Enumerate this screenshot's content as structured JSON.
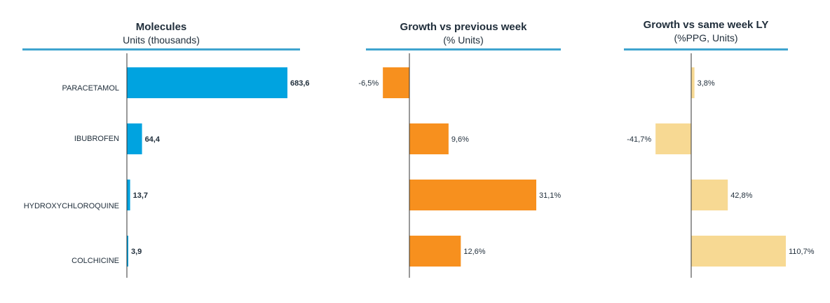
{
  "chart_data": [
    {
      "type": "bar",
      "orientation": "horizontal",
      "title": "Molecules",
      "subtitle": "Units (thousands)",
      "categories": [
        "PARACETAMOL",
        "IBUBROFEN",
        "HYDROXYCHLOROQUINE",
        "COLCHICINE"
      ],
      "values": [
        683.6,
        64.4,
        13.7,
        3.9
      ],
      "value_labels": [
        "683,6",
        "64,4",
        "13,7",
        "3,9"
      ],
      "color": "#00a3e0",
      "xlim": [
        0,
        700
      ]
    },
    {
      "type": "bar",
      "orientation": "horizontal",
      "title": "Growth vs previous week",
      "subtitle": "(% Units)",
      "categories": [
        "PARACETAMOL",
        "IBUBROFEN",
        "HYDROXYCHLOROQUINE",
        "COLCHICINE"
      ],
      "values": [
        -6.5,
        9.6,
        31.1,
        12.6
      ],
      "value_labels": [
        "-6,5%",
        "9,6%",
        "31,1%",
        "12,6%"
      ],
      "color": "#f7901e",
      "xlim": [
        -7,
        35
      ]
    },
    {
      "type": "bar",
      "orientation": "horizontal",
      "title": "Growth vs same week LY",
      "subtitle": "(%PPG, Units)",
      "categories": [
        "PARACETAMOL",
        "IBUBROFEN",
        "HYDROXYCHLOROQUINE",
        "COLCHICINE"
      ],
      "values": [
        3.8,
        -41.7,
        42.8,
        110.7
      ],
      "value_labels": [
        "3,8%",
        "-41,7%",
        "42,8%",
        "110,7%"
      ],
      "color": "#f7d993",
      "xlim": [
        -42,
        115
      ]
    }
  ]
}
